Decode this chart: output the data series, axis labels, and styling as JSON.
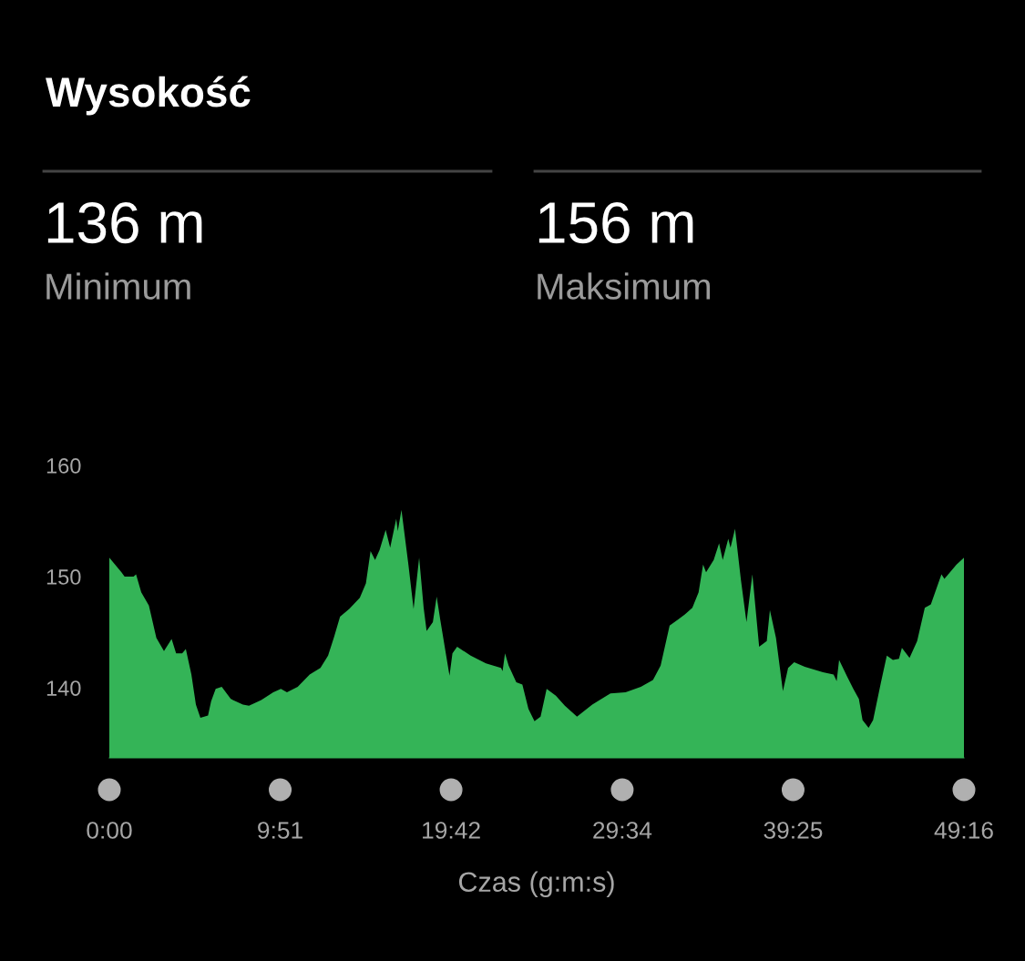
{
  "chart_data": {
    "type": "area",
    "title": "Wysokość",
    "xlabel": "Czas (g:m:s)",
    "annotations": [
      "136 m",
      "Minimum",
      "156 m",
      "Maksimum"
    ],
    "x": [
      0,
      0.7,
      0.88,
      1.4,
      1.54,
      1.84,
      2.28,
      2.71,
      3.15,
      3.59,
      3.85,
      4.2,
      4.41,
      4.73,
      4.99,
      5.25,
      5.69,
      5.87,
      6.13,
      6.48,
      7.0,
      7.7,
      8.05,
      8.76,
      9.45,
      9.89,
      10.24,
      10.86,
      11.55,
      12.17,
      12.61,
      12.96,
      13.3,
      13.83,
      14.44,
      14.79,
      15.06,
      15.32,
      15.58,
      15.93,
      16.19,
      16.54,
      16.63,
      16.84,
      17.24,
      17.54,
      17.86,
      18.12,
      18.29,
      18.65,
      18.87,
      19.08,
      19.61,
      19.78,
      20.05,
      20.83,
      21.71,
      22.58,
      22.67,
      22.81,
      23.02,
      23.46,
      23.81,
      24.16,
      24.51,
      24.86,
      25.21,
      25.74,
      26.26,
      26.96,
      27.84,
      28.89,
      29.76,
      30.64,
      31.34,
      31.78,
      32.3,
      32.74,
      33.18,
      33.61,
      33.97,
      34.23,
      34.4,
      34.84,
      35.15,
      35.36,
      35.68,
      35.81,
      36.07,
      36.41,
      36.73,
      37.07,
      37.46,
      37.9,
      38.08,
      38.43,
      38.83,
      39.13,
      39.48,
      40.09,
      41.14,
      41.75,
      41.93,
      42.07,
      42.54,
      42.89,
      43.21,
      43.42,
      43.77,
      44.03,
      44.47,
      44.82,
      45.17,
      45.52,
      45.69,
      46.13,
      46.57,
      47.01,
      47.36,
      47.97,
      48.14,
      48.84,
      49.267
    ],
    "series": [
      {
        "color": "#34b457",
        "values": [
          151.7,
          150.4,
          150.0,
          150.0,
          150.2,
          148.6,
          147.4,
          144.5,
          143.3,
          144.4,
          143.1,
          143.1,
          143.5,
          141.2,
          138.5,
          137.3,
          137.5,
          138.8,
          139.9,
          140.1,
          139.0,
          138.5,
          138.4,
          138.9,
          139.6,
          139.9,
          139.6,
          140.1,
          141.2,
          141.8,
          142.9,
          144.6,
          146.4,
          147.1,
          148.1,
          149.4,
          152.3,
          151.5,
          152.4,
          154.2,
          152.6,
          155.2,
          154.1,
          156.0,
          151.1,
          147.1,
          151.7,
          147.2,
          145.1,
          145.9,
          148.2,
          146.1,
          141.1,
          143.1,
          143.7,
          142.9,
          142.2,
          141.8,
          141.5,
          143.1,
          142.0,
          140.5,
          140.3,
          138.1,
          137.0,
          137.4,
          139.9,
          139.3,
          138.4,
          137.4,
          138.5,
          139.5,
          139.6,
          140.1,
          140.7,
          142.0,
          145.6,
          146.1,
          146.6,
          147.2,
          148.6,
          151.1,
          150.4,
          151.5,
          153.0,
          151.5,
          153.4,
          152.6,
          154.3,
          149.7,
          145.9,
          150.2,
          143.7,
          144.2,
          147.0,
          144.5,
          139.7,
          141.8,
          142.3,
          141.9,
          141.4,
          141.2,
          140.6,
          142.5,
          141.0,
          139.9,
          139.0,
          137.1,
          136.4,
          137.1,
          140.4,
          142.9,
          142.5,
          142.6,
          143.6,
          142.7,
          144.2,
          147.2,
          147.5,
          150.2,
          149.8,
          151.1,
          151.7
        ]
      }
    ],
    "xlim": [
      0,
      49.267
    ],
    "xticks": [
      {
        "value": 0,
        "label": "0:00"
      },
      {
        "value": 9.85,
        "label": "9:51"
      },
      {
        "value": 19.7,
        "label": "19:42"
      },
      {
        "value": 29.567,
        "label": "29:34"
      },
      {
        "value": 39.417,
        "label": "39:25"
      },
      {
        "value": 49.267,
        "label": "49:16"
      }
    ],
    "ylim": [
      133.7,
      160
    ],
    "yticks": [
      140,
      150,
      160
    ],
    "grid": false,
    "legend": false
  }
}
